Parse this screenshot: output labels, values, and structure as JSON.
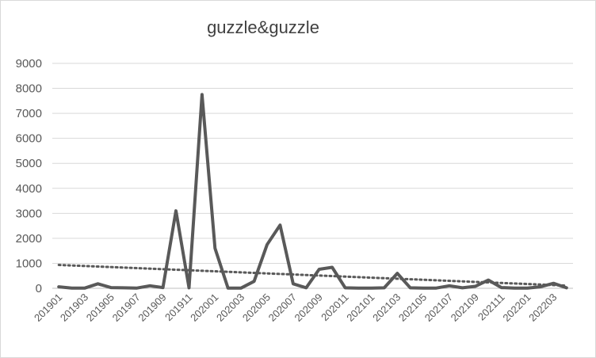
{
  "chart_data": {
    "type": "line",
    "title": "guzzle&guzzle",
    "xlabel": "",
    "ylabel": "",
    "ylim": [
      0,
      9000
    ],
    "yticks": [
      0,
      1000,
      2000,
      3000,
      4000,
      5000,
      6000,
      7000,
      8000,
      9000
    ],
    "grid": true,
    "legend": "none",
    "categories": [
      "201901",
      "201902",
      "201903",
      "201904",
      "201905",
      "201906",
      "201907",
      "201908",
      "201909",
      "201910",
      "201911",
      "201912",
      "202001",
      "202002",
      "202003",
      "202004",
      "202005",
      "202006",
      "202007",
      "202008",
      "202009",
      "202010",
      "202011",
      "202012",
      "202101",
      "202102",
      "202103",
      "202104",
      "202105",
      "202106",
      "202107",
      "202108",
      "202109",
      "202110",
      "202111",
      "202112",
      "202201",
      "202202",
      "202203",
      "202204"
    ],
    "tick_labels": [
      "201901",
      "201903",
      "201905",
      "201907",
      "201909",
      "201911",
      "202001",
      "202003",
      "202005",
      "202007",
      "202009",
      "202011",
      "202101",
      "202103",
      "202105",
      "202107",
      "202109",
      "202111",
      "202201",
      "202203"
    ],
    "series": [
      {
        "values": [
          60,
          10,
          10,
          180,
          30,
          20,
          10,
          100,
          30,
          3100,
          20,
          7750,
          1600,
          10,
          10,
          280,
          1750,
          2530,
          180,
          20,
          760,
          840,
          20,
          10,
          10,
          20,
          600,
          20,
          10,
          10,
          100,
          20,
          80,
          330,
          30,
          10,
          10,
          60,
          200,
          20
        ],
        "color": "#595959"
      }
    ],
    "trendline": {
      "type": "linear",
      "style": "dotted",
      "color": "#595959"
    }
  }
}
